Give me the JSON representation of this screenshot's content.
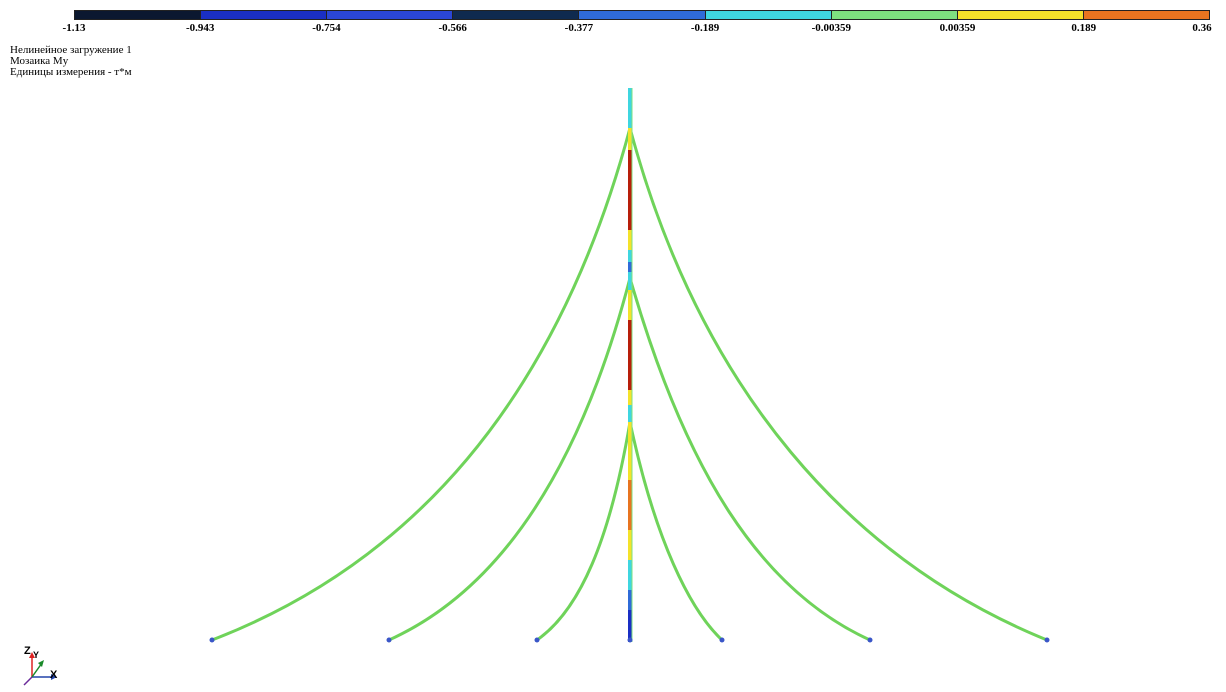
{
  "legend": {
    "colors": [
      "#0b1830",
      "#1a2fc4",
      "#2a46d6",
      "#0f2a4f",
      "#2f6bd8",
      "#3fd6e0",
      "#7ee080",
      "#f4e22a",
      "#e87420"
    ],
    "ticks": [
      "-1.13",
      "-0.943",
      "-0.754",
      "-0.566",
      "-0.377",
      "-0.189",
      "-0.00359",
      "0.00359",
      "0.189",
      "0.36"
    ]
  },
  "info": {
    "line1": "Нелинейное загружение 1",
    "line2": "Мозаика My",
    "line3": "Единицы измерения - т*м"
  },
  "model": {
    "cable_color": "#6fd35a",
    "mast_color": "#b81e0a",
    "node_color": "#3a56c8"
  },
  "axes": {
    "z": "Z",
    "y": "Y",
    "x": "X"
  }
}
